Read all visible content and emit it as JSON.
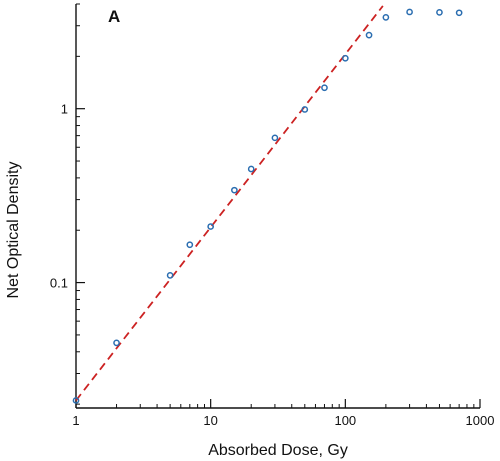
{
  "chart_data": {
    "type": "scatter",
    "panel_label": "A",
    "xlabel": "Absorbed Dose, Gy",
    "ylabel": "Net Optical Density",
    "x_scale": "log",
    "y_scale": "log",
    "xlim": [
      1,
      1000
    ],
    "ylim": [
      0.019,
      4.0
    ],
    "x_ticks": [
      {
        "value": 1,
        "label": "1"
      },
      {
        "value": 10,
        "label": "10"
      },
      {
        "value": 100,
        "label": "100"
      },
      {
        "value": 1000,
        "label": "1000"
      }
    ],
    "y_ticks": [
      {
        "value": 0.1,
        "label": "0.1"
      },
      {
        "value": 1,
        "label": "1"
      }
    ],
    "grid": false,
    "colors": {
      "points": "#2a6db0",
      "fit_line": "#cc2222",
      "axes": "#111111"
    },
    "series": [
      {
        "type": "scatter",
        "marker": "open-circle",
        "x": [
          1,
          2,
          5,
          7,
          10,
          15,
          20,
          30,
          50,
          70,
          100,
          150,
          200,
          300,
          500,
          700
        ],
        "y": [
          0.021,
          0.045,
          0.11,
          0.165,
          0.21,
          0.34,
          0.45,
          0.68,
          0.99,
          1.32,
          1.95,
          2.65,
          3.35,
          3.6,
          3.58,
          3.56
        ]
      },
      {
        "type": "line",
        "style": "dashed",
        "x": [
          1,
          190
        ],
        "y": [
          0.021,
          3.9
        ]
      }
    ]
  }
}
